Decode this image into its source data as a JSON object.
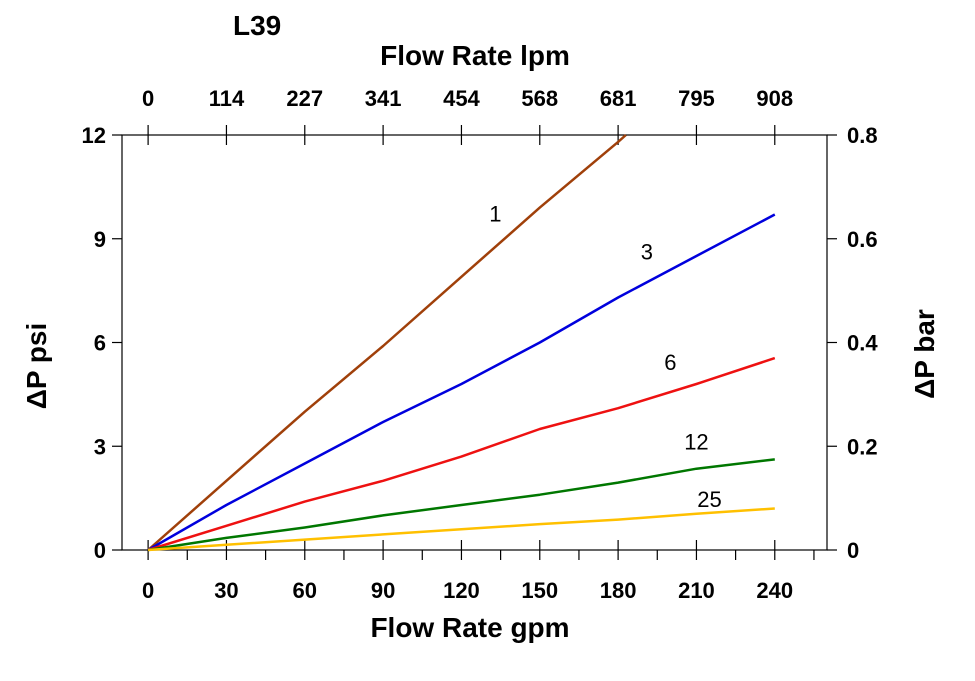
{
  "chart_data": {
    "type": "line",
    "title": "L39",
    "xlabel": "Flow Rate gpm",
    "x2label": "Flow Rate lpm",
    "ylabel": "ΔP psi",
    "y2label": "ΔP bar",
    "xlim": [
      -10,
      260
    ],
    "ylim": [
      0,
      12
    ],
    "y2lim": [
      0,
      0.8
    ],
    "x_ticks": [
      0,
      30,
      60,
      90,
      120,
      150,
      180,
      210,
      240
    ],
    "x_tick_labels": [
      "0",
      "30",
      "60",
      "90",
      "120",
      "150",
      "180",
      "210",
      "240"
    ],
    "x2_ticks": [
      0,
      30,
      60,
      90,
      120,
      150,
      180,
      210,
      240
    ],
    "x2_tick_labels": [
      "0",
      "114",
      "227",
      "341",
      "454",
      "568",
      "681",
      "795",
      "908"
    ],
    "y_ticks": [
      0,
      3,
      6,
      9,
      12
    ],
    "y_tick_labels": [
      "0",
      "3",
      "6",
      "9",
      "12"
    ],
    "y2_ticks": [
      0,
      0.2,
      0.4,
      0.6,
      0.8
    ],
    "y2_tick_labels": [
      "0",
      "0.2",
      "0.4",
      "0.6",
      "0.8"
    ],
    "grid": false,
    "series": [
      {
        "name": "1",
        "color": "#a0400a",
        "x": [
          0,
          30,
          60,
          90,
          120,
          150,
          180,
          183
        ],
        "y": [
          0,
          2.0,
          4.0,
          5.9,
          7.9,
          9.9,
          11.8,
          12.0
        ],
        "label_at": [
          133,
          9.5
        ]
      },
      {
        "name": "3",
        "color": "#0000dd",
        "x": [
          0,
          30,
          60,
          90,
          120,
          150,
          180,
          210,
          240
        ],
        "y": [
          0,
          1.3,
          2.5,
          3.7,
          4.8,
          6.0,
          7.3,
          8.5,
          9.7
        ],
        "label_at": [
          191,
          8.4
        ]
      },
      {
        "name": "6",
        "color": "#ee1111",
        "x": [
          0,
          30,
          60,
          90,
          120,
          150,
          180,
          210,
          240
        ],
        "y": [
          0,
          0.7,
          1.4,
          2.0,
          2.7,
          3.5,
          4.1,
          4.8,
          5.55
        ],
        "label_at": [
          200,
          5.2
        ]
      },
      {
        "name": "12",
        "color": "#007700",
        "x": [
          0,
          30,
          60,
          90,
          120,
          150,
          180,
          210,
          240
        ],
        "y": [
          0,
          0.35,
          0.65,
          1.0,
          1.3,
          1.6,
          1.95,
          2.35,
          2.62
        ],
        "label_at": [
          210,
          2.9
        ]
      },
      {
        "name": "25",
        "color": "#ffc000",
        "x": [
          0,
          30,
          60,
          90,
          120,
          150,
          180,
          210,
          240
        ],
        "y": [
          0,
          0.15,
          0.3,
          0.45,
          0.6,
          0.75,
          0.88,
          1.05,
          1.2
        ],
        "label_at": [
          215,
          1.25
        ]
      }
    ]
  }
}
